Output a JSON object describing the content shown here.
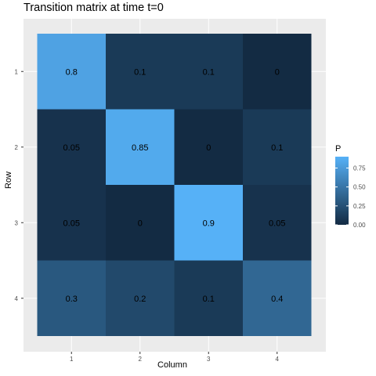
{
  "chart_data": {
    "type": "heatmap",
    "title": "Transition matrix at time t=0",
    "xlabel": "Column",
    "ylabel": "Row",
    "x_categories": [
      "1",
      "2",
      "3",
      "4"
    ],
    "y_categories": [
      "1",
      "2",
      "3",
      "4"
    ],
    "values": [
      [
        0.8,
        0.1,
        0.1,
        0
      ],
      [
        0.05,
        0.85,
        0,
        0.1
      ],
      [
        0.05,
        0,
        0.9,
        0.05
      ],
      [
        0.3,
        0.2,
        0.1,
        0.4
      ]
    ],
    "legend": {
      "title": "P",
      "ticks": [
        "0.00",
        "0.25",
        "0.50",
        "0.75"
      ],
      "tick_values": [
        0,
        0.25,
        0.5,
        0.75
      ],
      "range": [
        0,
        0.9
      ],
      "placement": "right",
      "low_color": "#132B43",
      "high_color": "#56B1F7"
    },
    "background_color": "#EBEBEB",
    "grid": true
  }
}
